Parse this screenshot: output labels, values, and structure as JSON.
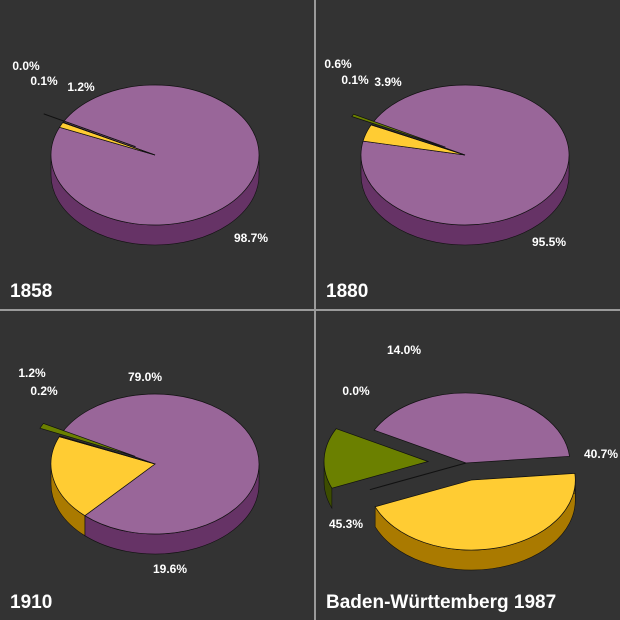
{
  "chart_data": [
    {
      "type": "pie",
      "title": "1858",
      "slices": [
        {
          "value": 98.7,
          "label": "98.7%",
          "color": "#996699",
          "side": "#663366"
        },
        {
          "value": 1.2,
          "label": "1.2%",
          "color": "#ffcc33",
          "side": "#aa7a00"
        },
        {
          "value": 0.1,
          "label": "0.1%",
          "color": "#660000",
          "side": "#3a0000"
        },
        {
          "value": 0.0,
          "label": "0.0%",
          "color": "#6b8000",
          "side": "#3d4d00"
        }
      ]
    },
    {
      "type": "pie",
      "title": "1880",
      "slices": [
        {
          "value": 95.5,
          "label": "95.5%",
          "color": "#996699",
          "side": "#663366"
        },
        {
          "value": 3.9,
          "label": "3.9%",
          "color": "#ffcc33",
          "side": "#aa7a00"
        },
        {
          "value": 0.1,
          "label": "0.1%",
          "color": "#660000",
          "side": "#3a0000"
        },
        {
          "value": 0.6,
          "label": "0.6%",
          "color": "#6b8000",
          "side": "#3d4d00"
        }
      ]
    },
    {
      "type": "pie",
      "title": "1910",
      "slices": [
        {
          "value": 79.0,
          "label": "79.0%",
          "color": "#996699",
          "side": "#663366"
        },
        {
          "value": 19.6,
          "label": "19.6%",
          "color": "#ffcc33",
          "side": "#aa7a00"
        },
        {
          "value": 0.2,
          "label": "0.2%",
          "color": "#660000",
          "side": "#3a0000"
        },
        {
          "value": 1.2,
          "label": "1.2%",
          "color": "#6b8000",
          "side": "#3d4d00"
        }
      ]
    },
    {
      "type": "pie",
      "title": "Baden-Württemberg 1987",
      "slices": [
        {
          "value": 40.7,
          "label": "40.7%",
          "color": "#996699",
          "side": "#663366"
        },
        {
          "value": 45.3,
          "label": "45.3%",
          "color": "#ffcc33",
          "side": "#aa7a00"
        },
        {
          "value": 0.0,
          "label": "0.0%",
          "color": "#660000",
          "side": "#3a0000"
        },
        {
          "value": 14.0,
          "label": "14.0%",
          "color": "#6b8000",
          "side": "#3d4d00"
        }
      ]
    }
  ]
}
